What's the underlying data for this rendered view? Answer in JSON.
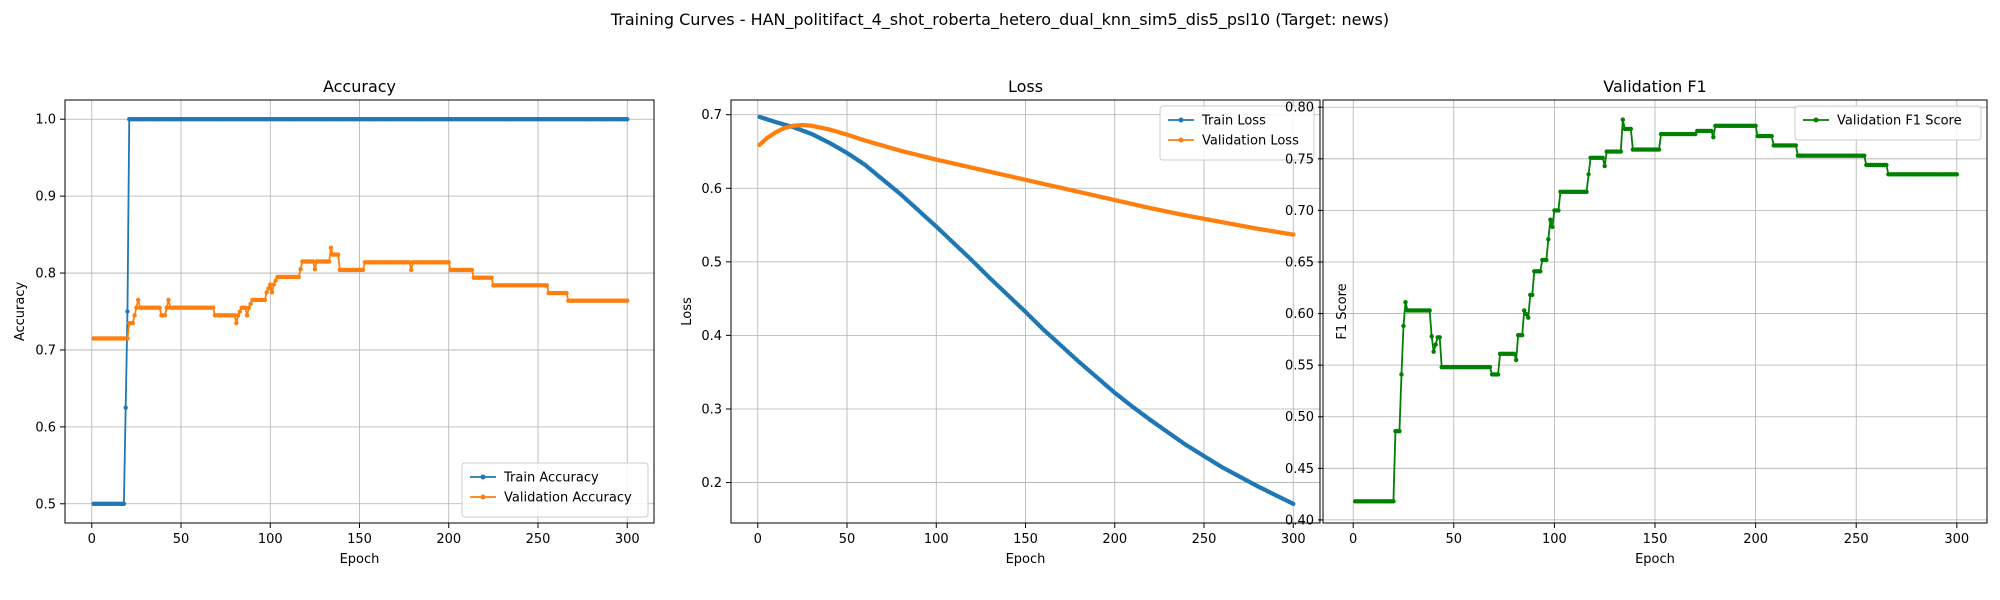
{
  "figure": {
    "title": "Training Curves - HAN_politifact_4_shot_roberta_hetero_dual_knn_sim5_dis5_psl10 (Target: news)"
  },
  "colors": {
    "blue": "#1f77b4",
    "orange": "#ff7f0e",
    "green": "#008000",
    "grid": "#b0b0b0"
  },
  "chart_data": [
    {
      "type": "line",
      "title": "Accuracy",
      "xlabel": "Epoch",
      "ylabel": "Accuracy",
      "xlim": [
        -15,
        315
      ],
      "ylim": [
        0.475,
        1.025
      ],
      "xticks": [
        0,
        50,
        100,
        150,
        200,
        250,
        300
      ],
      "yticks": [
        0.5,
        0.6,
        0.7,
        0.8,
        0.9,
        1.0
      ],
      "ytick_labels": [
        "0.5",
        "0.6",
        "0.7",
        "0.8",
        "0.9",
        "1.0"
      ],
      "grid": true,
      "legend_position": "lower-right",
      "series": [
        {
          "name": "Train Accuracy",
          "color": "#1f77b4",
          "points": [
            [
              1,
              0.5
            ],
            [
              18,
              0.5
            ],
            [
              19,
              0.625
            ],
            [
              20,
              0.75
            ],
            [
              21,
              1.0
            ],
            [
              300,
              1.0
            ]
          ]
        },
        {
          "name": "Validation Accuracy",
          "color": "#ff7f0e",
          "points": [
            [
              1,
              0.715
            ],
            [
              20,
              0.715
            ],
            [
              21,
              0.735
            ],
            [
              23,
              0.735
            ],
            [
              24,
              0.745
            ],
            [
              25,
              0.755
            ],
            [
              26,
              0.765
            ],
            [
              27,
              0.755
            ],
            [
              38,
              0.755
            ],
            [
              39,
              0.745
            ],
            [
              41,
              0.745
            ],
            [
              42,
              0.755
            ],
            [
              43,
              0.765
            ],
            [
              44,
              0.755
            ],
            [
              68,
              0.755
            ],
            [
              69,
              0.745
            ],
            [
              80,
              0.745
            ],
            [
              81,
              0.735
            ],
            [
              82,
              0.745
            ],
            [
              84,
              0.755
            ],
            [
              86,
              0.755
            ],
            [
              87,
              0.745
            ],
            [
              88,
              0.755
            ],
            [
              90,
              0.765
            ],
            [
              97,
              0.765
            ],
            [
              98,
              0.775
            ],
            [
              100,
              0.785
            ],
            [
              101,
              0.775
            ],
            [
              102,
              0.785
            ],
            [
              104,
              0.795
            ],
            [
              116,
              0.795
            ],
            [
              117,
              0.805
            ],
            [
              118,
              0.815
            ],
            [
              124,
              0.815
            ],
            [
              125,
              0.805
            ],
            [
              126,
              0.815
            ],
            [
              133,
              0.815
            ],
            [
              134,
              0.833
            ],
            [
              135,
              0.824
            ],
            [
              138,
              0.824
            ],
            [
              139,
              0.804
            ],
            [
              152,
              0.804
            ],
            [
              153,
              0.814
            ],
            [
              178,
              0.814
            ],
            [
              179,
              0.804
            ],
            [
              180,
              0.814
            ],
            [
              200,
              0.814
            ],
            [
              201,
              0.804
            ],
            [
              213,
              0.804
            ],
            [
              214,
              0.794
            ],
            [
              224,
              0.794
            ],
            [
              225,
              0.784
            ],
            [
              255,
              0.784
            ],
            [
              256,
              0.774
            ],
            [
              266,
              0.774
            ],
            [
              267,
              0.764
            ],
            [
              300,
              0.764
            ]
          ]
        }
      ]
    },
    {
      "type": "line",
      "title": "Loss",
      "xlabel": "Epoch",
      "ylabel": "Loss",
      "xlim": [
        -15,
        315
      ],
      "ylim": [
        0.145,
        0.72
      ],
      "xticks": [
        0,
        50,
        100,
        150,
        200,
        250,
        300
      ],
      "yticks": [
        0.2,
        0.3,
        0.4,
        0.5,
        0.6,
        0.7
      ],
      "ytick_labels": [
        "0.2",
        "0.3",
        "0.4",
        "0.5",
        "0.6",
        "0.7"
      ],
      "grid": true,
      "legend_position": "upper-right",
      "series": [
        {
          "name": "Train Loss",
          "color": "#1f77b4",
          "points": [
            [
              1,
              0.697
            ],
            [
              10,
              0.69
            ],
            [
              20,
              0.683
            ],
            [
              30,
              0.674
            ],
            [
              40,
              0.662
            ],
            [
              50,
              0.648
            ],
            [
              60,
              0.632
            ],
            [
              70,
              0.612
            ],
            [
              80,
              0.592
            ],
            [
              90,
              0.57
            ],
            [
              100,
              0.548
            ],
            [
              110,
              0.525
            ],
            [
              120,
              0.502
            ],
            [
              130,
              0.478
            ],
            [
              140,
              0.455
            ],
            [
              150,
              0.432
            ],
            [
              160,
              0.408
            ],
            [
              170,
              0.386
            ],
            [
              180,
              0.364
            ],
            [
              190,
              0.343
            ],
            [
              200,
              0.322
            ],
            [
              210,
              0.303
            ],
            [
              220,
              0.285
            ],
            [
              230,
              0.268
            ],
            [
              240,
              0.251
            ],
            [
              250,
              0.236
            ],
            [
              260,
              0.221
            ],
            [
              270,
              0.208
            ],
            [
              280,
              0.195
            ],
            [
              290,
              0.183
            ],
            [
              300,
              0.171
            ]
          ]
        },
        {
          "name": "Validation Loss",
          "color": "#ff7f0e",
          "points": [
            [
              1,
              0.659
            ],
            [
              5,
              0.668
            ],
            [
              10,
              0.676
            ],
            [
              15,
              0.682
            ],
            [
              20,
              0.685
            ],
            [
              25,
              0.686
            ],
            [
              30,
              0.685
            ],
            [
              40,
              0.68
            ],
            [
              50,
              0.673
            ],
            [
              60,
              0.665
            ],
            [
              70,
              0.658
            ],
            [
              80,
              0.651
            ],
            [
              90,
              0.645
            ],
            [
              100,
              0.639
            ],
            [
              120,
              0.628
            ],
            [
              140,
              0.617
            ],
            [
              160,
              0.606
            ],
            [
              180,
              0.595
            ],
            [
              200,
              0.584
            ],
            [
              220,
              0.573
            ],
            [
              240,
              0.563
            ],
            [
              260,
              0.554
            ],
            [
              280,
              0.545
            ],
            [
              300,
              0.537
            ]
          ]
        }
      ]
    },
    {
      "type": "line",
      "title": "Validation F1",
      "xlabel": "Epoch",
      "ylabel": "F1 Score",
      "xlim": [
        -15,
        315
      ],
      "ylim": [
        0.397,
        0.807
      ],
      "xticks": [
        0,
        50,
        100,
        150,
        200,
        250,
        300
      ],
      "yticks": [
        0.4,
        0.45,
        0.5,
        0.55,
        0.6,
        0.65,
        0.7,
        0.75,
        0.8
      ],
      "ytick_labels": [
        "0.40",
        "0.45",
        "0.50",
        "0.55",
        "0.60",
        "0.65",
        "0.70",
        "0.75",
        "0.80"
      ],
      "grid": true,
      "legend_position": "upper-right",
      "series": [
        {
          "name": "Validation F1 Score",
          "color": "#008000",
          "points": [
            [
              1,
              0.418
            ],
            [
              20,
              0.418
            ],
            [
              21,
              0.486
            ],
            [
              23,
              0.486
            ],
            [
              24,
              0.541
            ],
            [
              25,
              0.588
            ],
            [
              26,
              0.611
            ],
            [
              27,
              0.603
            ],
            [
              38,
              0.603
            ],
            [
              39,
              0.578
            ],
            [
              40,
              0.563
            ],
            [
              41,
              0.57
            ],
            [
              42,
              0.577
            ],
            [
              43,
              0.577
            ],
            [
              44,
              0.548
            ],
            [
              68,
              0.548
            ],
            [
              69,
              0.541
            ],
            [
              72,
              0.541
            ],
            [
              73,
              0.561
            ],
            [
              80,
              0.561
            ],
            [
              81,
              0.555
            ],
            [
              82,
              0.579
            ],
            [
              84,
              0.579
            ],
            [
              85,
              0.603
            ],
            [
              87,
              0.596
            ],
            [
              88,
              0.618
            ],
            [
              89,
              0.618
            ],
            [
              90,
              0.641
            ],
            [
              93,
              0.641
            ],
            [
              94,
              0.652
            ],
            [
              96,
              0.652
            ],
            [
              97,
              0.672
            ],
            [
              98,
              0.691
            ],
            [
              99,
              0.684
            ],
            [
              100,
              0.7
            ],
            [
              102,
              0.7
            ],
            [
              103,
              0.718
            ],
            [
              116,
              0.718
            ],
            [
              117,
              0.735
            ],
            [
              118,
              0.751
            ],
            [
              124,
              0.751
            ],
            [
              125,
              0.743
            ],
            [
              126,
              0.757
            ],
            [
              133,
              0.757
            ],
            [
              134,
              0.788
            ],
            [
              135,
              0.779
            ],
            [
              138,
              0.779
            ],
            [
              139,
              0.759
            ],
            [
              152,
              0.759
            ],
            [
              153,
              0.774
            ],
            [
              170,
              0.774
            ],
            [
              171,
              0.777
            ],
            [
              178,
              0.777
            ],
            [
              179,
              0.771
            ],
            [
              180,
              0.782
            ],
            [
              200,
              0.782
            ],
            [
              201,
              0.772
            ],
            [
              208,
              0.772
            ],
            [
              209,
              0.763
            ],
            [
              220,
              0.763
            ],
            [
              221,
              0.753
            ],
            [
              254,
              0.753
            ],
            [
              255,
              0.744
            ],
            [
              265,
              0.744
            ],
            [
              266,
              0.735
            ],
            [
              300,
              0.735
            ]
          ]
        }
      ]
    }
  ]
}
